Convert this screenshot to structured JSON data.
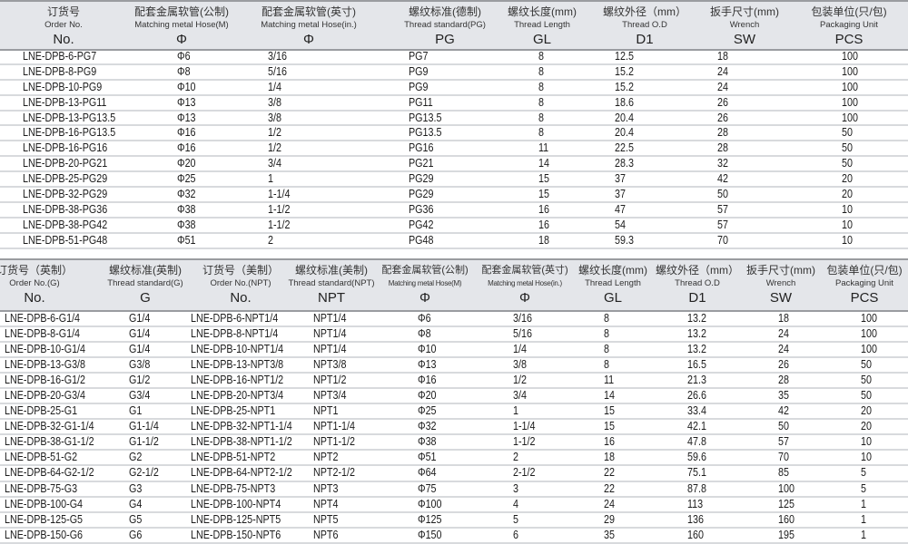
{
  "table1": {
    "headers": [
      {
        "zh": "订货号",
        "en": "Order No.",
        "sym": "No."
      },
      {
        "zh": "配套金属软管(公制)",
        "en": "Matching metal Hose(M)",
        "sym": "Φ"
      },
      {
        "zh": "配套金属软管(英寸)",
        "en": "Matching metal Hose(in.)",
        "sym": "Φ"
      },
      {
        "zh": "螺纹标准(德制)",
        "en": "Thread standard(PG)",
        "sym": "PG"
      },
      {
        "zh": "螺纹长度(mm)",
        "en": "Thread  Length",
        "sym": "GL"
      },
      {
        "zh": "螺纹外径（mm）",
        "en": "Thread O.D",
        "sym": "D1"
      },
      {
        "zh": "扳手尺寸(mm)",
        "en": "Wrench",
        "sym": "SW"
      },
      {
        "zh": "包装单位(只/包)",
        "en": "Packaging Unit",
        "sym": "PCS"
      }
    ],
    "rows": [
      [
        "LNE-DPB-6-PG7",
        "Φ6",
        "3/16",
        "PG7",
        "8",
        "12.5",
        "18",
        "100"
      ],
      [
        "LNE-DPB-8-PG9",
        "Φ8",
        "5/16",
        "PG9",
        "8",
        "15.2",
        "24",
        "100"
      ],
      [
        "LNE-DPB-10-PG9",
        "Φ10",
        "1/4",
        "PG9",
        "8",
        "15.2",
        "24",
        "100"
      ],
      [
        "LNE-DPB-13-PG11",
        "Φ13",
        "3/8",
        "PG11",
        "8",
        "18.6",
        "26",
        "100"
      ],
      [
        "LNE-DPB-13-PG13.5",
        "Φ13",
        "3/8",
        "PG13.5",
        "8",
        "20.4",
        "26",
        "100"
      ],
      [
        "LNE-DPB-16-PG13.5",
        "Φ16",
        "1/2",
        "PG13.5",
        "8",
        "20.4",
        "28",
        "50"
      ],
      [
        "LNE-DPB-16-PG16",
        "Φ16",
        "1/2",
        "PG16",
        "11",
        "22.5",
        "28",
        "50"
      ],
      [
        "LNE-DPB-20-PG21",
        "Φ20",
        "3/4",
        "PG21",
        "14",
        "28.3",
        "32",
        "50"
      ],
      [
        "LNE-DPB-25-PG29",
        "Φ25",
        "1",
        "PG29",
        "15",
        "37",
        "42",
        "20"
      ],
      [
        "LNE-DPB-32-PG29",
        "Φ32",
        "1-1/4",
        "PG29",
        "15",
        "37",
        "50",
        "20"
      ],
      [
        "LNE-DPB-38-PG36",
        "Φ38",
        "1-1/2",
        "PG36",
        "16",
        "47",
        "57",
        "10"
      ],
      [
        "LNE-DPB-38-PG42",
        "Φ38",
        "1-1/2",
        "PG42",
        "16",
        "54",
        "57",
        "10"
      ],
      [
        "LNE-DPB-51-PG48",
        "Φ51",
        "2",
        "PG48",
        "18",
        "59.3",
        "70",
        "10"
      ]
    ]
  },
  "table2": {
    "headers": [
      {
        "zh": "订货号（英制）",
        "en": "Order No.(G)",
        "sym": "No."
      },
      {
        "zh": "螺纹标准(英制)",
        "en": "Thread standard(G)",
        "sym": "G"
      },
      {
        "zh": "订货号（美制）",
        "en": "Order No.(NPT)",
        "sym": "No."
      },
      {
        "zh": "螺纹标准(美制)",
        "en": "Thread standard(NPT)",
        "sym": "NPT"
      },
      {
        "zh": "配套金属软管(公制)",
        "en": "Matching metal Hose(M)",
        "sym": "Φ"
      },
      {
        "zh": "配套金属软管(英寸)",
        "en": "Matching metal Hose(in.)",
        "sym": "Φ"
      },
      {
        "zh": "螺纹长度(mm)",
        "en": "Thread  Length",
        "sym": "GL"
      },
      {
        "zh": "螺纹外径（mm）",
        "en": "Thread O.D",
        "sym": "D1"
      },
      {
        "zh": "扳手尺寸(mm)",
        "en": "Wrench",
        "sym": "SW"
      },
      {
        "zh": "包装单位(只/包)",
        "en": "Packaging Unit",
        "sym": "PCS"
      }
    ],
    "rows": [
      [
        "LNE-DPB-6-G1/4",
        "G1/4",
        "LNE-DPB-6-NPT1/4",
        "NPT1/4",
        "Φ6",
        "3/16",
        "8",
        "13.2",
        "18",
        "100"
      ],
      [
        "LNE-DPB-8-G1/4",
        "G1/4",
        "LNE-DPB-8-NPT1/4",
        "NPT1/4",
        "Φ8",
        "5/16",
        "8",
        "13.2",
        "24",
        "100"
      ],
      [
        "LNE-DPB-10-G1/4",
        "G1/4",
        "LNE-DPB-10-NPT1/4",
        "NPT1/4",
        "Φ10",
        "1/4",
        "8",
        "13.2",
        "24",
        "100"
      ],
      [
        "LNE-DPB-13-G3/8",
        "G3/8",
        "LNE-DPB-13-NPT3/8",
        "NPT3/8",
        "Φ13",
        "3/8",
        "8",
        "16.5",
        "26",
        "50"
      ],
      [
        "LNE-DPB-16-G1/2",
        "G1/2",
        "LNE-DPB-16-NPT1/2",
        "NPT1/2",
        "Φ16",
        "1/2",
        "11",
        "21.3",
        "28",
        "50"
      ],
      [
        "LNE-DPB-20-G3/4",
        "G3/4",
        "LNE-DPB-20-NPT3/4",
        "NPT3/4",
        "Φ20",
        "3/4",
        "14",
        "26.6",
        "35",
        "50"
      ],
      [
        "LNE-DPB-25-G1",
        "G1",
        "LNE-DPB-25-NPT1",
        "NPT1",
        "Φ25",
        "1",
        "15",
        "33.4",
        "42",
        "20"
      ],
      [
        "LNE-DPB-32-G1-1/4",
        "G1-1/4",
        "LNE-DPB-32-NPT1-1/4",
        "NPT1-1/4",
        "Φ32",
        "1-1/4",
        "15",
        "42.1",
        "50",
        "20"
      ],
      [
        "LNE-DPB-38-G1-1/2",
        "G1-1/2",
        "LNE-DPB-38-NPT1-1/2",
        "NPT1-1/2",
        "Φ38",
        "1-1/2",
        "16",
        "47.8",
        "57",
        "10"
      ],
      [
        "LNE-DPB-51-G2",
        "G2",
        "LNE-DPB-51-NPT2",
        "NPT2",
        "Φ51",
        "2",
        "18",
        "59.6",
        "70",
        "10"
      ],
      [
        "LNE-DPB-64-G2-1/2",
        "G2-1/2",
        "LNE-DPB-64-NPT2-1/2",
        "NPT2-1/2",
        "Φ64",
        "2-1/2",
        "22",
        "75.1",
        "85",
        "5"
      ],
      [
        "LNE-DPB-75-G3",
        "G3",
        "LNE-DPB-75-NPT3",
        "NPT3",
        "Φ75",
        "3",
        "22",
        "87.8",
        "100",
        "5"
      ],
      [
        "LNE-DPB-100-G4",
        "G4",
        "LNE-DPB-100-NPT4",
        "NPT4",
        "Φ100",
        "4",
        "24",
        "113",
        "125",
        "1"
      ],
      [
        "LNE-DPB-125-G5",
        "G5",
        "LNE-DPB-125-NPT5",
        "NPT5",
        "Φ125",
        "5",
        "29",
        "136",
        "160",
        "1"
      ],
      [
        "LNE-DPB-150-G6",
        "G6",
        "LNE-DPB-150-NPT6",
        "NPT6",
        "Φ150",
        "6",
        "35",
        "160",
        "195",
        "1"
      ]
    ]
  }
}
